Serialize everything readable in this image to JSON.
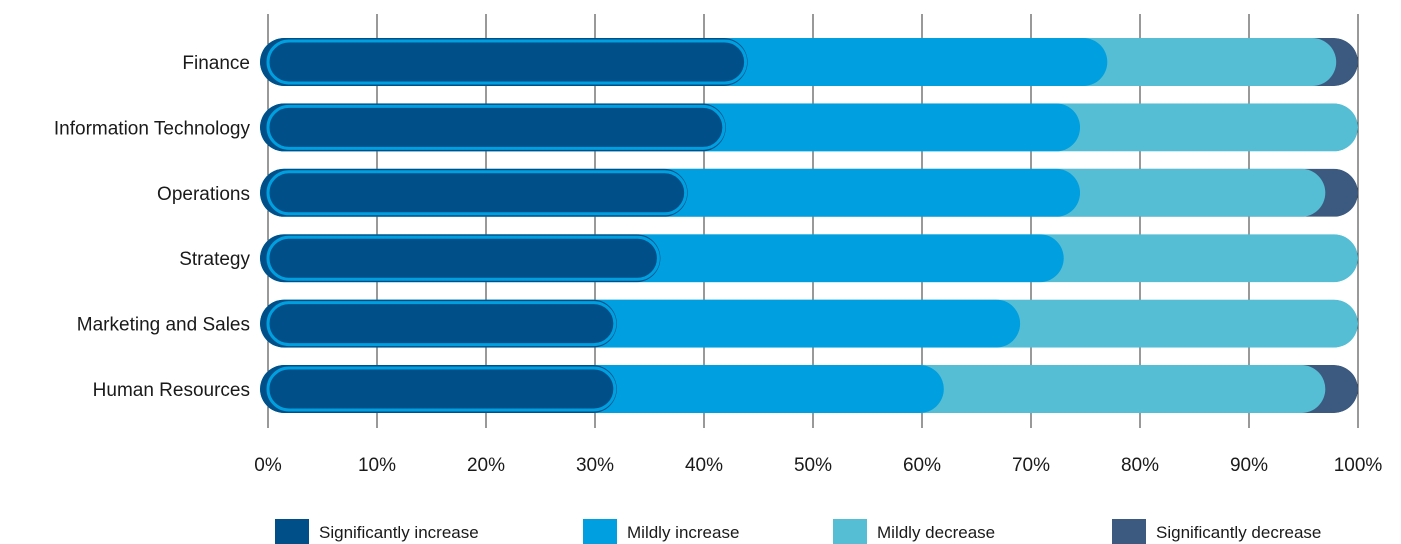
{
  "chart_data": {
    "type": "bar",
    "orientation": "horizontal",
    "stacked": true,
    "percent": true,
    "categories": [
      "Finance",
      "Information Technology",
      "Operations",
      "Strategy",
      "Marketing and Sales",
      "Human Resources"
    ],
    "series": [
      {
        "name": "Significantly increase",
        "color": "#004f88",
        "values": [
          44,
          42,
          38.5,
          36,
          32,
          32
        ]
      },
      {
        "name": "Mildly increase",
        "color": "#009fdf",
        "values": [
          33,
          32.5,
          36,
          37,
          37,
          30
        ]
      },
      {
        "name": "Mildly decrease",
        "color": "#55bed5",
        "values": [
          21,
          25.5,
          22.5,
          27,
          31,
          35
        ]
      },
      {
        "name": "Significantly decrease",
        "color": "#3c5a80",
        "values": [
          2,
          0,
          3,
          0,
          0,
          3
        ]
      }
    ],
    "xlim": [
      0,
      100
    ],
    "xticks": [
      "0%",
      "10%",
      "20%",
      "30%",
      "40%",
      "50%",
      "60%",
      "70%",
      "80%",
      "90%",
      "100%"
    ],
    "grid": true,
    "legend_position": "bottom"
  }
}
